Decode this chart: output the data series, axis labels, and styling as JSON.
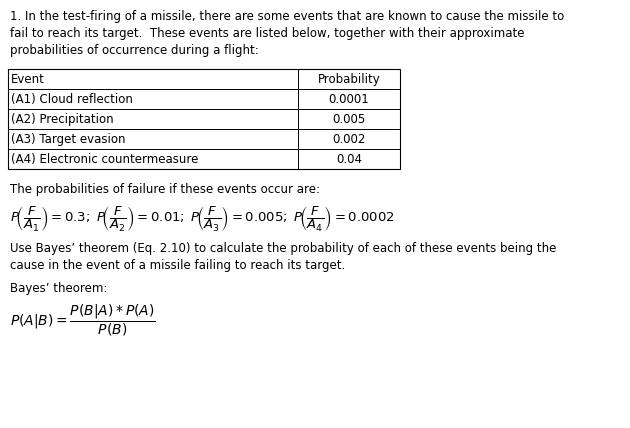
{
  "bg_color": "#ffffff",
  "text_color": "#000000",
  "intro_line1": "1. In the test-firing of a missile, there are some events that are known to cause the missile to",
  "intro_line2": "fail to reach its target.  These events are listed below, together with their approximate",
  "intro_line3": "probabilities of occurrence during a flight:",
  "table_headers": [
    "Event",
    "Probability"
  ],
  "table_rows": [
    [
      "(A1) Cloud reflection",
      "0.0001"
    ],
    [
      "(A2) Precipitation",
      "0.005"
    ],
    [
      "(A3) Target evasion",
      "0.002"
    ],
    [
      "(A4) Electronic countermeasure",
      "0.04"
    ]
  ],
  "prob_line": "The probabilities of failure if these events occur are:",
  "bayes_use_line1": "Use Bayes’ theorem (Eq. 2.10) to calculate the probability of each of these events being the",
  "bayes_use_line2": "cause in the event of a missile failing to reach its target.",
  "bayes_label": "Bayes’ theorem:"
}
